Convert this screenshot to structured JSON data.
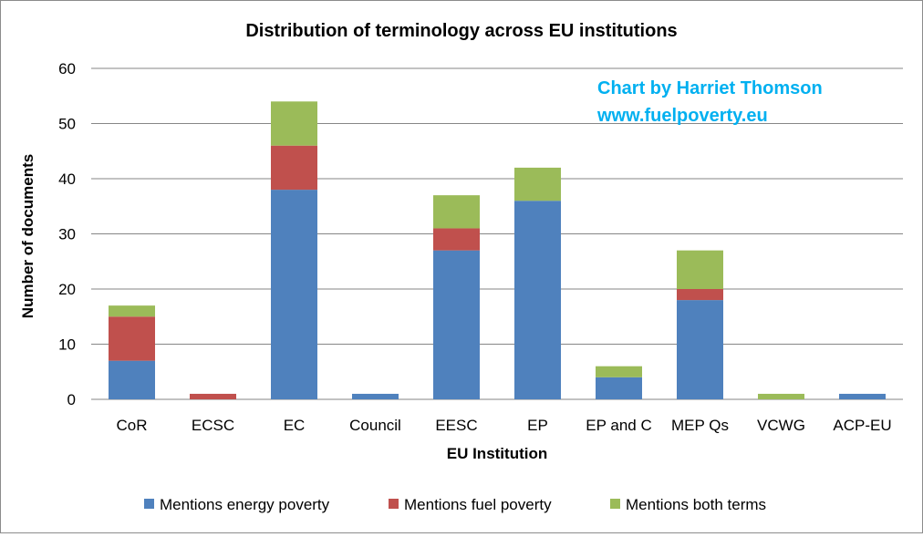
{
  "chart_data": {
    "type": "bar",
    "stacked": true,
    "title": "Distribution of terminology across EU institutions",
    "xlabel": "EU Institution",
    "ylabel": "Number of documents",
    "ylim": [
      0,
      60
    ],
    "yticks": [
      0,
      10,
      20,
      30,
      40,
      50,
      60
    ],
    "grid": true,
    "legend_position": "bottom",
    "categories": [
      "CoR",
      "ECSC",
      "EC",
      "Council",
      "EESC",
      "EP",
      "EP and C",
      "MEP Qs",
      "VCWG",
      "ACP-EU"
    ],
    "series": [
      {
        "name": "Mentions energy poverty",
        "color": "#4f81bd",
        "values": [
          7,
          0,
          38,
          1,
          27,
          36,
          4,
          18,
          0,
          1
        ]
      },
      {
        "name": "Mentions fuel poverty",
        "color": "#c0504d",
        "values": [
          8,
          1,
          8,
          0,
          4,
          0,
          0,
          2,
          0,
          0
        ]
      },
      {
        "name": "Mentions both terms",
        "color": "#9bbb59",
        "values": [
          2,
          0,
          8,
          0,
          6,
          6,
          2,
          7,
          1,
          0
        ]
      }
    ],
    "annotations": [
      "Chart by Harriet Thomson",
      "www.fuelpoverty.eu"
    ],
    "annotation_color": "#00b0f0"
  }
}
